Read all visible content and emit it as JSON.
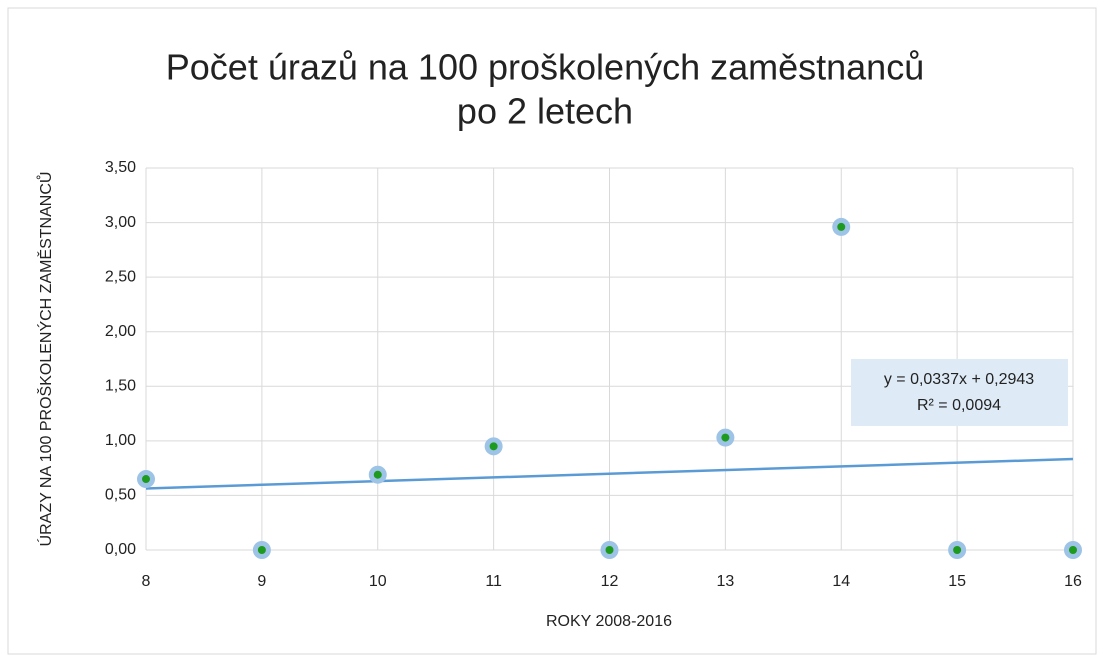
{
  "chart_data": {
    "type": "scatter",
    "title": [
      "Počet úrazů na 100 proškolených zaměstnanců",
      "po 2 letech"
    ],
    "x_label": "ROKY 2008-2016",
    "y_label": "ÚRAZY NA 100 PROŠKOLENÝCH ZAMĚSTNANCŮ",
    "x": [
      8,
      9,
      10,
      11,
      12,
      13,
      14,
      15,
      16
    ],
    "values": [
      0.65,
      0,
      0.69,
      0.95,
      0,
      1.03,
      2.96,
      0,
      0
    ],
    "color": "#1e9a1e",
    "marker_ring_color": "#9dc3e6",
    "xlim": [
      8,
      16
    ],
    "xticks": [
      8,
      9,
      10,
      11,
      12,
      13,
      14,
      15,
      16
    ],
    "ylim": [
      0,
      3.5
    ],
    "yticks": [
      {
        "value": 0,
        "label": "0,00"
      },
      {
        "value": 0.5,
        "label": "0,50"
      },
      {
        "value": 1,
        "label": "1,00"
      },
      {
        "value": 1.5,
        "label": "1,50"
      },
      {
        "value": 2,
        "label": "2,00"
      },
      {
        "value": 2.5,
        "label": "2,50"
      },
      {
        "value": 3,
        "label": "3,00"
      },
      {
        "value": 3.5,
        "label": "3,50"
      }
    ],
    "grid": true,
    "trendline": {
      "slope": 0.0337,
      "intercept": 0.2943,
      "color": "#5b9bd5",
      "equation": "y = 0,0337x + 0,2943",
      "r2": "R² = 0,0094"
    }
  }
}
